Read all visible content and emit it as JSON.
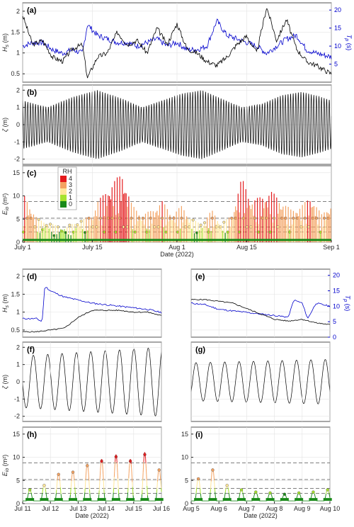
{
  "chart_data": [
    {
      "panel": "(a)",
      "type": "line",
      "ylabel": "H_s (m)",
      "y2label": "T_p (s)",
      "yticks": [
        "0.5",
        "1",
        "1.5",
        "2"
      ],
      "y2ticks": [
        "5",
        "10",
        "15",
        "20"
      ],
      "ylim": [
        0.3,
        2.2
      ],
      "y2lim": [
        0,
        22
      ],
      "xlim": [
        0,
        62
      ],
      "series": [
        {
          "axis": "left",
          "color": "#000000",
          "x": [
            0,
            2,
            4,
            6,
            8,
            10,
            12,
            13,
            15,
            17,
            19,
            21,
            23,
            25,
            27,
            29,
            31,
            33,
            35,
            37,
            39,
            41,
            43,
            45,
            47,
            49,
            51,
            53,
            55,
            57,
            59,
            62
          ],
          "y": [
            1.9,
            1.2,
            1.3,
            0.9,
            0.8,
            1.1,
            1.2,
            0.4,
            0.9,
            1.0,
            1.5,
            1.2,
            1.3,
            1.0,
            1.6,
            1.2,
            1.7,
            1.1,
            1.0,
            0.8,
            0.7,
            0.9,
            1.2,
            1.4,
            1.0,
            2.1,
            1.3,
            1.8,
            1.1,
            0.8,
            0.7,
            0.5
          ]
        },
        {
          "axis": "right",
          "color": "#0000cc",
          "x": [
            0,
            2,
            4,
            6,
            8,
            10,
            12,
            13,
            15,
            17,
            19,
            21,
            23,
            25,
            27,
            29,
            31,
            33,
            35,
            37,
            39,
            41,
            43,
            45,
            47,
            49,
            51,
            53,
            55,
            57,
            59,
            62
          ],
          "y": [
            10,
            11,
            11,
            9,
            8,
            9,
            8,
            16,
            13,
            12,
            11,
            11,
            10,
            11,
            12,
            10,
            11,
            9,
            9,
            10,
            17,
            13,
            12,
            11,
            10,
            8,
            10,
            12,
            13,
            9,
            8,
            7
          ]
        }
      ]
    },
    {
      "panel": "(b)",
      "type": "line",
      "ylabel": "ζ (m)",
      "yticks": [
        "-2",
        "-1",
        "0",
        "1",
        "2"
      ],
      "ylim": [
        -2.3,
        2.3
      ],
      "xlim": [
        0,
        62
      ],
      "tide_period_days": 0.5175,
      "envelope": {
        "x": [
          0,
          5,
          10,
          15,
          20,
          24,
          28,
          32,
          36,
          40,
          44,
          48,
          52,
          56,
          60,
          62
        ],
        "y": [
          1.4,
          1.0,
          1.6,
          2.0,
          1.5,
          1.0,
          1.4,
          1.8,
          2.0,
          1.5,
          1.0,
          1.2,
          1.7,
          1.9,
          1.6,
          1.4
        ]
      }
    },
    {
      "panel": "(c)",
      "type": "bar",
      "ylabel": "E_io (m²)",
      "yticks": [
        "0",
        "5",
        "10",
        "15"
      ],
      "ylim": [
        0,
        16.5
      ],
      "thresholds": [
        2.2,
        3.3,
        5.2,
        8.8
      ],
      "xticks": [
        "July 1",
        "July 15",
        "Aug 1",
        "Aug 15",
        "Sep 1"
      ],
      "xtick_pos": [
        0,
        14,
        31,
        45,
        62
      ],
      "xlabel": "Date (2022)",
      "legend": {
        "title": "RH",
        "entries": [
          "4",
          "3",
          "2",
          "1",
          "0"
        ],
        "colors": [
          "#e41a1c",
          "#f4a261",
          "#ffe699",
          "#a6e22e",
          "#1a8a1a"
        ]
      },
      "peaks": {
        "x": [
          0.5,
          1,
          3,
          6,
          8,
          10,
          12,
          14,
          15,
          16,
          18,
          20,
          22,
          24,
          26,
          28,
          30,
          32,
          34,
          36,
          38,
          40,
          42,
          44,
          46,
          48,
          50,
          52,
          54,
          56,
          58,
          60,
          61.5
        ],
        "y": [
          10,
          9,
          5,
          4,
          3,
          4,
          5,
          6,
          9,
          10,
          13,
          15,
          8,
          6,
          7,
          9,
          6,
          8,
          5,
          4,
          7,
          4,
          6,
          14,
          9,
          10,
          11,
          9,
          7,
          8,
          10,
          6,
          8
        ]
      }
    },
    {
      "panel": "(d)",
      "type": "line",
      "ylabel": "H_s (m)",
      "yticks": [
        "0.5",
        "1",
        "1.5",
        "2"
      ],
      "ylim": [
        0.3,
        2.2
      ],
      "y2lim": [
        0,
        22
      ],
      "xlim": [
        11,
        16
      ],
      "series": [
        {
          "axis": "left",
          "color": "#000000",
          "x": [
            11,
            11.5,
            12,
            12.5,
            13,
            13.5,
            14,
            14.5,
            15,
            15.5,
            16
          ],
          "y": [
            0.45,
            0.45,
            0.5,
            0.55,
            0.85,
            1.05,
            1.05,
            1.05,
            1.0,
            1.0,
            0.9
          ]
        },
        {
          "axis": "right",
          "color": "#0000cc",
          "x": [
            11,
            11.5,
            11.7,
            11.8,
            12,
            12.5,
            13,
            13.5,
            14,
            14.5,
            15,
            15.5,
            16
          ],
          "y": [
            6,
            6,
            5,
            16.5,
            15,
            13,
            12,
            11,
            10.5,
            10,
            9.5,
            9,
            8
          ]
        }
      ]
    },
    {
      "panel": "(e)",
      "type": "line",
      "y2label": "T_p (s)",
      "y2ticks": [
        "0",
        "5",
        "10",
        "15",
        "20"
      ],
      "ylim": [
        0.3,
        2.2
      ],
      "y2lim": [
        0,
        22
      ],
      "xlim": [
        5,
        10
      ],
      "series": [
        {
          "axis": "left",
          "color": "#000000",
          "x": [
            5,
            5.5,
            6,
            6.5,
            7,
            7.5,
            8,
            8.5,
            9,
            9.5,
            10
          ],
          "y": [
            1.35,
            1.35,
            1.3,
            1.25,
            1.1,
            0.95,
            0.8,
            0.75,
            0.8,
            0.7,
            0.65
          ]
        },
        {
          "axis": "right",
          "color": "#0000cc",
          "x": [
            5,
            5.5,
            6,
            6.5,
            7,
            7.5,
            8,
            8.5,
            8.7,
            9,
            9.2,
            9.5,
            10
          ],
          "y": [
            11,
            10.5,
            9,
            8.5,
            8,
            7.5,
            7,
            6.5,
            12,
            11,
            6,
            11,
            10
          ]
        }
      ]
    },
    {
      "panel": "(f)",
      "type": "line",
      "ylabel": "ζ (m)",
      "yticks": [
        "-2",
        "-1",
        "0",
        "1",
        "2"
      ],
      "ylim": [
        -2.3,
        2.3
      ],
      "xlim": [
        11,
        16
      ],
      "amplitude": [
        1.5,
        2.0
      ]
    },
    {
      "panel": "(g)",
      "type": "line",
      "ylim": [
        -2.3,
        2.3
      ],
      "xlim": [
        5,
        10
      ],
      "amplitude": [
        1.1,
        1.3
      ]
    },
    {
      "panel": "(h)",
      "type": "line",
      "ylabel": "E_io (m²)",
      "yticks": [
        "0",
        "5",
        "10",
        "15"
      ],
      "ylim": [
        0,
        16.5
      ],
      "xticks": [
        "Jul 11",
        "Jul 12",
        "Jul 13",
        "Jul 14",
        "Jul 15",
        "Jul 16"
      ],
      "xlim": [
        11,
        16
      ],
      "xlabel": "Date (2022)",
      "peak_heights": [
        2.5,
        3.5,
        6.0,
        6.5,
        8.0,
        9.0,
        10.0,
        9.0,
        10.5,
        7.0,
        8.0
      ]
    },
    {
      "panel": "(i)",
      "type": "line",
      "yticks": [
        "0",
        "5",
        "10",
        "15"
      ],
      "ylim": [
        0,
        16.5
      ],
      "xticks": [
        "Aug 5",
        "Aug 6",
        "Aug 7",
        "Aug 8",
        "Aug 9",
        "Aug 10"
      ],
      "xlim": [
        5,
        10
      ],
      "xlabel": "Date (2022)",
      "peak_heights": [
        5.0,
        7.0,
        3.5,
        2.5,
        2.0,
        1.8,
        1.5,
        1.8,
        2.0,
        2.5,
        3.0,
        2.0
      ]
    }
  ]
}
